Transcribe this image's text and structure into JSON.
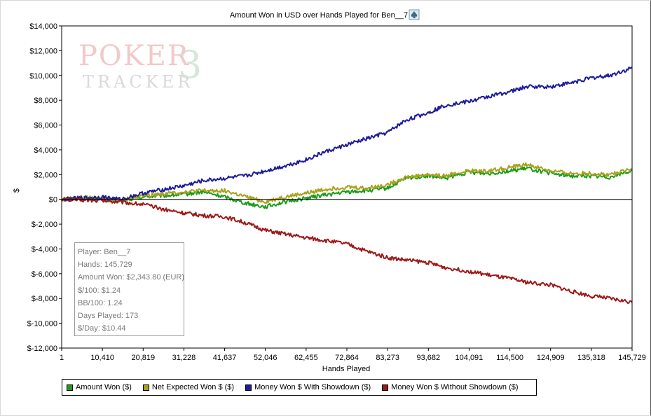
{
  "chart_data": {
    "type": "line",
    "title": "Amount Won in USD over Hands Played for Ben__7",
    "xlabel": "Hands Played",
    "ylabel": "$",
    "xlim": [
      1,
      145729
    ],
    "ylim": [
      -12000,
      14000
    ],
    "x_ticks": [
      "1",
      "10,410",
      "20,819",
      "31,228",
      "41,637",
      "52,046",
      "62,455",
      "72,864",
      "83,273",
      "93,682",
      "104,091",
      "114,500",
      "124,909",
      "135,318",
      "145,729"
    ],
    "y_ticks": [
      "$14,000",
      "$12,000",
      "$10,000",
      "$8,000",
      "$6,000",
      "$4,000",
      "$2,000",
      "$0",
      "$-2,000",
      "$-4,000",
      "$-6,000",
      "$-8,000",
      "$-10,000",
      "$-12,000"
    ],
    "y_tick_values": [
      14000,
      12000,
      10000,
      8000,
      6000,
      4000,
      2000,
      0,
      -2000,
      -4000,
      -6000,
      -8000,
      -10000,
      -12000
    ],
    "grid": false,
    "legend_position": "bottom",
    "x": [
      1,
      5000,
      10410,
      15000,
      20819,
      26000,
      31228,
      36000,
      41637,
      47000,
      52046,
      57000,
      62455,
      67000,
      72864,
      78000,
      83273,
      88000,
      93682,
      98000,
      104091,
      109000,
      114500,
      119000,
      124909,
      130000,
      135318,
      140000,
      145729
    ],
    "series": [
      {
        "name": "Amount Won ($)",
        "color": "#1a9c1a",
        "values": [
          0,
          100,
          0,
          -150,
          200,
          300,
          400,
          600,
          200,
          -300,
          -600,
          -200,
          100,
          350,
          600,
          700,
          900,
          1700,
          1900,
          1700,
          2200,
          2100,
          2300,
          2500,
          2100,
          1900,
          1900,
          1800,
          2344
        ]
      },
      {
        "name": "Net Expected Won $ ($)",
        "color": "#a8a21a",
        "values": [
          0,
          150,
          100,
          -100,
          300,
          450,
          600,
          700,
          700,
          200,
          -200,
          200,
          500,
          800,
          1000,
          900,
          1200,
          1800,
          2000,
          1900,
          2300,
          2300,
          2600,
          2800,
          2300,
          2100,
          2100,
          2000,
          2400
        ]
      },
      {
        "name": "Money Won $ With Showdown ($)",
        "color": "#1c1c9c",
        "values": [
          0,
          100,
          200,
          0,
          500,
          800,
          1100,
          1500,
          1700,
          1900,
          2300,
          2700,
          3200,
          3800,
          4400,
          4900,
          5400,
          6400,
          7000,
          7600,
          7900,
          8300,
          8700,
          9100,
          9100,
          9400,
          9800,
          10000,
          10600
        ]
      },
      {
        "name": "Money Won $ Without Showdown ($)",
        "color": "#a01818",
        "values": [
          0,
          -50,
          -100,
          -200,
          -400,
          -800,
          -1100,
          -1300,
          -1400,
          -1900,
          -2500,
          -2800,
          -3100,
          -3300,
          -3600,
          -4200,
          -4700,
          -4900,
          -5100,
          -5500,
          -5800,
          -6100,
          -6400,
          -6700,
          -6900,
          -7400,
          -7800,
          -8000,
          -8300
        ]
      }
    ]
  },
  "stats_box": {
    "player": "Player: Ben__7",
    "hands": "Hands: 145,729",
    "amount_won": "Amount Won: $2,343.80 (EUR)",
    "per100": "$/100: $1.24",
    "bb100": "BB/100: 1.24",
    "days_played": "Days Played: 173",
    "per_day": "$/Day: $10.44"
  },
  "watermark": {
    "line1": "POKER",
    "line2": "TRACKER",
    "mark": "3"
  },
  "colors": {
    "zero_line": "#000000",
    "axis": "#000000"
  },
  "icons": {
    "title_icon": "spade-icon"
  }
}
